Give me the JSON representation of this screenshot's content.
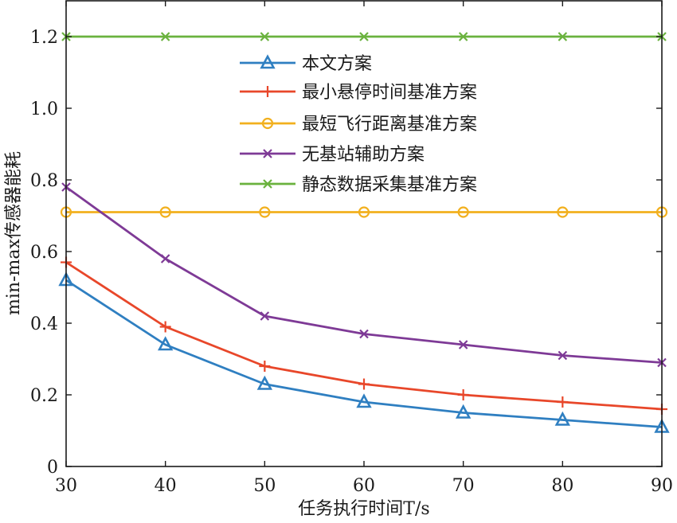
{
  "chart_data": {
    "type": "line",
    "title": "",
    "xlabel": "任务执行时间T/s",
    "ylabel": "min-max传感器能耗",
    "x": [
      30,
      40,
      50,
      60,
      70,
      80,
      90
    ],
    "xlim": [
      30,
      90
    ],
    "ylim": [
      0,
      1.3
    ],
    "xticks": [
      30,
      40,
      50,
      60,
      70,
      80,
      90
    ],
    "yticks": [
      0,
      0.2,
      0.4,
      0.6,
      0.8,
      1.0,
      1.2
    ],
    "ytick_labels": [
      "0",
      "0.2",
      "0.4",
      "0.6",
      "0.8",
      "1.0",
      "1.2"
    ],
    "grid": false,
    "legend_position": "top-center",
    "series": [
      {
        "name": "本文方案",
        "color": "#2f7fc1",
        "marker": "triangle",
        "values": [
          0.52,
          0.34,
          0.23,
          0.18,
          0.15,
          0.13,
          0.11
        ]
      },
      {
        "name": "最小悬停时间基准方案",
        "color": "#e8472a",
        "marker": "plus",
        "values": [
          0.57,
          0.39,
          0.28,
          0.23,
          0.2,
          0.18,
          0.16
        ]
      },
      {
        "name": "最短飞行距离基准方案",
        "color": "#f2b01e",
        "marker": "circle",
        "values": [
          0.71,
          0.71,
          0.71,
          0.71,
          0.71,
          0.71,
          0.71
        ]
      },
      {
        "name": "无基站辅助方案",
        "color": "#7e3a96",
        "marker": "x",
        "values": [
          0.78,
          0.58,
          0.42,
          0.37,
          0.34,
          0.31,
          0.29
        ]
      },
      {
        "name": "静态数据采集基准方案",
        "color": "#6ab23e",
        "marker": "x",
        "values": [
          1.2,
          1.2,
          1.2,
          1.2,
          1.2,
          1.2,
          1.2
        ]
      }
    ]
  }
}
